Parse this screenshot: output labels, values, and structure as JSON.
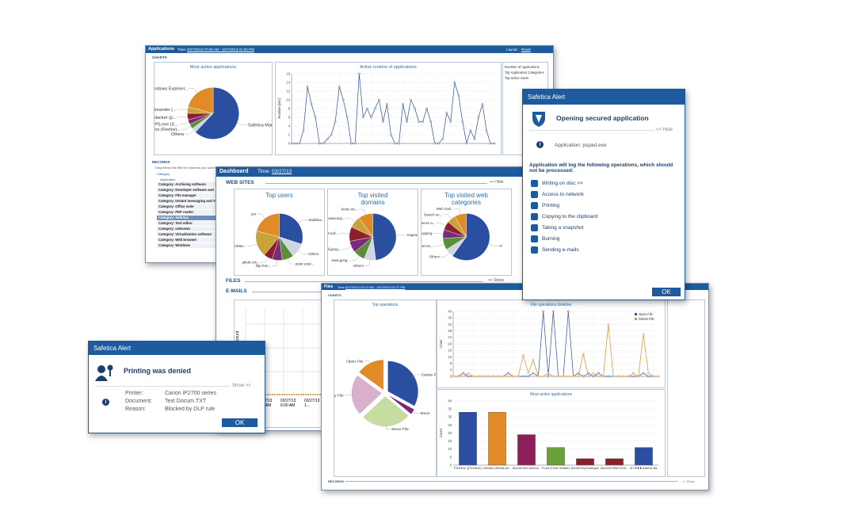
{
  "applications": {
    "title": "Applications",
    "time_label": "Time:",
    "time": "3/27/2013 07:00 AM - 3/27/2013 01:00 PM",
    "layout_label": "Layout:",
    "layout": "Reset",
    "charts_label": "CHARTS",
    "records_label": "RECORDS",
    "records_hint": "Drag below the title the columns you want to group by",
    "group_header": "Category",
    "column_header": "Application",
    "records": [
      "Category: Archiving software",
      "Category: Developer software and too...",
      "Category: File manager",
      "Category: Instant messaging and VOIP",
      "Category: Office suite",
      "Category: PDF reader",
      "Category: Safetica",
      "Category: Text editor",
      "Category: unknown",
      "Category: Virtualization software",
      "Category: Web browser",
      "Category: Windows"
    ],
    "side_list": [
      "Runtime of Applications",
      "Top Application Categories",
      "Top active users"
    ],
    "pie_chart": {
      "type": "pie",
      "title": "Most active applications",
      "labels": [
        "Safetica Manager",
        "Others",
        "Firefox (Firefox)...",
        "Safetica PS.exe (S...",
        "Process Hacker (p...",
        "Total Commander (...",
        "Windows Explorer..."
      ],
      "values": [
        62,
        3,
        3,
        3,
        4,
        4,
        21
      ],
      "colors": [
        "#2a4fa0",
        "#cdd6e2",
        "#5a8f3a",
        "#7a2a7a",
        "#8c1f2a",
        "#c9a23a",
        "#e08a28"
      ]
    },
    "line_chart": {
      "type": "line",
      "title": "Active runtime of applications",
      "y_label": "Runtime [min]",
      "ylim": [
        0,
        16
      ],
      "yticks": [
        0,
        2,
        4,
        6,
        8,
        10,
        12,
        14,
        16
      ],
      "series": [
        {
          "color": "#2a4fa0",
          "values": [
            0,
            0,
            0,
            3,
            13,
            9,
            6,
            0,
            0,
            1,
            2,
            5,
            13,
            10,
            6,
            0,
            0,
            16,
            6,
            8,
            6,
            8,
            10,
            5,
            9,
            2,
            0,
            0,
            9,
            5,
            10,
            8,
            5,
            5,
            8,
            5,
            0,
            0,
            1,
            7,
            5,
            14,
            11,
            5,
            0,
            3,
            1,
            6,
            9,
            3,
            0,
            0
          ]
        }
      ]
    }
  },
  "dashboard": {
    "title": "Dashboard",
    "time_label": "Time:",
    "time": "03/27/13",
    "web_label": "WEB SITES",
    "hide": "<< Hide",
    "files_label": "FILES",
    "show": "<< Show",
    "emails_label": "E-MAILS",
    "email_axis": "count",
    "email_dates": [
      "03/27/13 3:45 AM",
      "03/27/13 6:00 AM",
      "03/27/13 1..."
    ],
    "users": {
      "type": "pie",
      "title": "Top users",
      "labels": [
        "vladislav...",
        "Others",
        "peter.urad...",
        "filip.Tom...",
        "jakub.cim...",
        "vladislav...",
        "jan"
      ],
      "values": [
        30,
        10,
        8,
        7,
        6,
        18,
        21
      ],
      "colors": [
        "#2a4fa0",
        "#cdd6e2",
        "#5a8f3a",
        "#7a2a7a",
        "#8c1f2a",
        "#c9a23a",
        "#e08a28"
      ]
    },
    "domains": {
      "type": "pie",
      "title": "Top visited domains",
      "labels": [
        "bugtracke...",
        "Others",
        "www.goog...",
        "mail.goog...",
        "www.mcaf...",
        "www.avg...",
        "home.mc..."
      ],
      "values": [
        48,
        8,
        8,
        8,
        10,
        8,
        10
      ],
      "colors": [
        "#2a4fa0",
        "#cdd6e2",
        "#5a8f3a",
        "#7a2a7a",
        "#8c1f2a",
        "#c9a23a",
        "#e08a28"
      ]
    },
    "categories": {
      "type": "pie",
      "title": "Top visited web categories",
      "labels": [
        "IT",
        "Others",
        "Social net...",
        "Shopping",
        "Science a...",
        "Search en...",
        "Web mail..."
      ],
      "values": [
        60,
        6,
        8,
        6,
        6,
        6,
        8
      ],
      "colors": [
        "#2a4fa0",
        "#cdd6e2",
        "#5a8f3a",
        "#7a2a7a",
        "#8c1f2a",
        "#c9a23a",
        "#e08a28"
      ]
    }
  },
  "files": {
    "title": "Files",
    "time_label": "Time:",
    "time": "3/27/2013 03:27 AM - 3/27/2013 01:27 PM",
    "charts_label": "CHARTS",
    "records_label": "RECORDS",
    "show": "<< Show",
    "pie_chart": {
      "type": "pie",
      "title": "Top operations",
      "explode": true,
      "labels": [
        "Delete File",
        "Move",
        "Move File",
        "Copy File",
        "Open File"
      ],
      "values": [
        33,
        3,
        27,
        22,
        15
      ],
      "colors": [
        "#2a4fa0",
        "#7a2a7a",
        "#c6dca0",
        "#d8b0cc",
        "#e08a28"
      ]
    },
    "timeline": {
      "type": "line",
      "title": "File operations timeline",
      "y_label": "Count",
      "ylim": [
        0,
        40
      ],
      "yticks": [
        0,
        4,
        8,
        12,
        16,
        20,
        24,
        28,
        32,
        36,
        40
      ],
      "series": [
        {
          "name": "Open File",
          "color": "#2a4fa0",
          "values": [
            0,
            0,
            2,
            0,
            0,
            0,
            0,
            0,
            0,
            0,
            0,
            2,
            0,
            0,
            0,
            0,
            2,
            0,
            40,
            0,
            40,
            0,
            0,
            40,
            0,
            2,
            0,
            2,
            0,
            2,
            0,
            0,
            0,
            0,
            0,
            0,
            0,
            0,
            2,
            0,
            0,
            0
          ]
        },
        {
          "name": "Delete File",
          "color": "#e08a28",
          "values": [
            0,
            0,
            0,
            2,
            0,
            0,
            0,
            0,
            0,
            0,
            0,
            0,
            0,
            0,
            13,
            2,
            10,
            0,
            0,
            2,
            0,
            0,
            0,
            0,
            0,
            0,
            14,
            0,
            2,
            0,
            0,
            32,
            0,
            0,
            0,
            0,
            2,
            0,
            26,
            2,
            0,
            0
          ]
        }
      ]
    },
    "bar_chart": {
      "type": "bar",
      "title": "Most active applications",
      "y_label": "Count",
      "ylim": [
        0,
        40
      ],
      "yticks": [
        0,
        5,
        10,
        15,
        20,
        25,
        30,
        35,
        40
      ],
      "categories": [
        "Firefox (Firefox)",
        "Ultimate (Ultimate [ed...",
        "Microsoft Word (winword...",
        "Foxit (Foxit reader)",
        "Microsoft Setup Bootstrapper",
        "Microsoft Office Excel...",
        "Others"
      ],
      "values": [
        33,
        33,
        19,
        11,
        4,
        4,
        11
      ],
      "colors": [
        "#2a4fa0",
        "#e08a28",
        "#8c1f5a",
        "#6aa03a",
        "#8c1f2a",
        "#8c1f2a",
        "#2a4fa0"
      ]
    }
  },
  "alert_open": {
    "header": "Safetica Alert",
    "title": "Opening secured application",
    "hide": "<< Hide",
    "detail": "Application: pspad.exe",
    "notice": "Application will log the following operations, which should not be processed:",
    "operations": [
      "Writing on disc >>",
      "Access to network",
      "Printing",
      "Copying to the clipboard",
      "Taking a snapshot",
      "Burning",
      "Sending e-mails"
    ],
    "ok": "OK"
  },
  "alert_print": {
    "header": "Safetica Alert",
    "title": "Printing was denied",
    "show": "Show >>",
    "fields": [
      [
        "Printer:",
        "Canon iP2700 series"
      ],
      [
        "Document:",
        "Text Docum.TXT"
      ],
      [
        "Reason:",
        "Blocked by DLP rule"
      ]
    ],
    "ok": "OK"
  }
}
